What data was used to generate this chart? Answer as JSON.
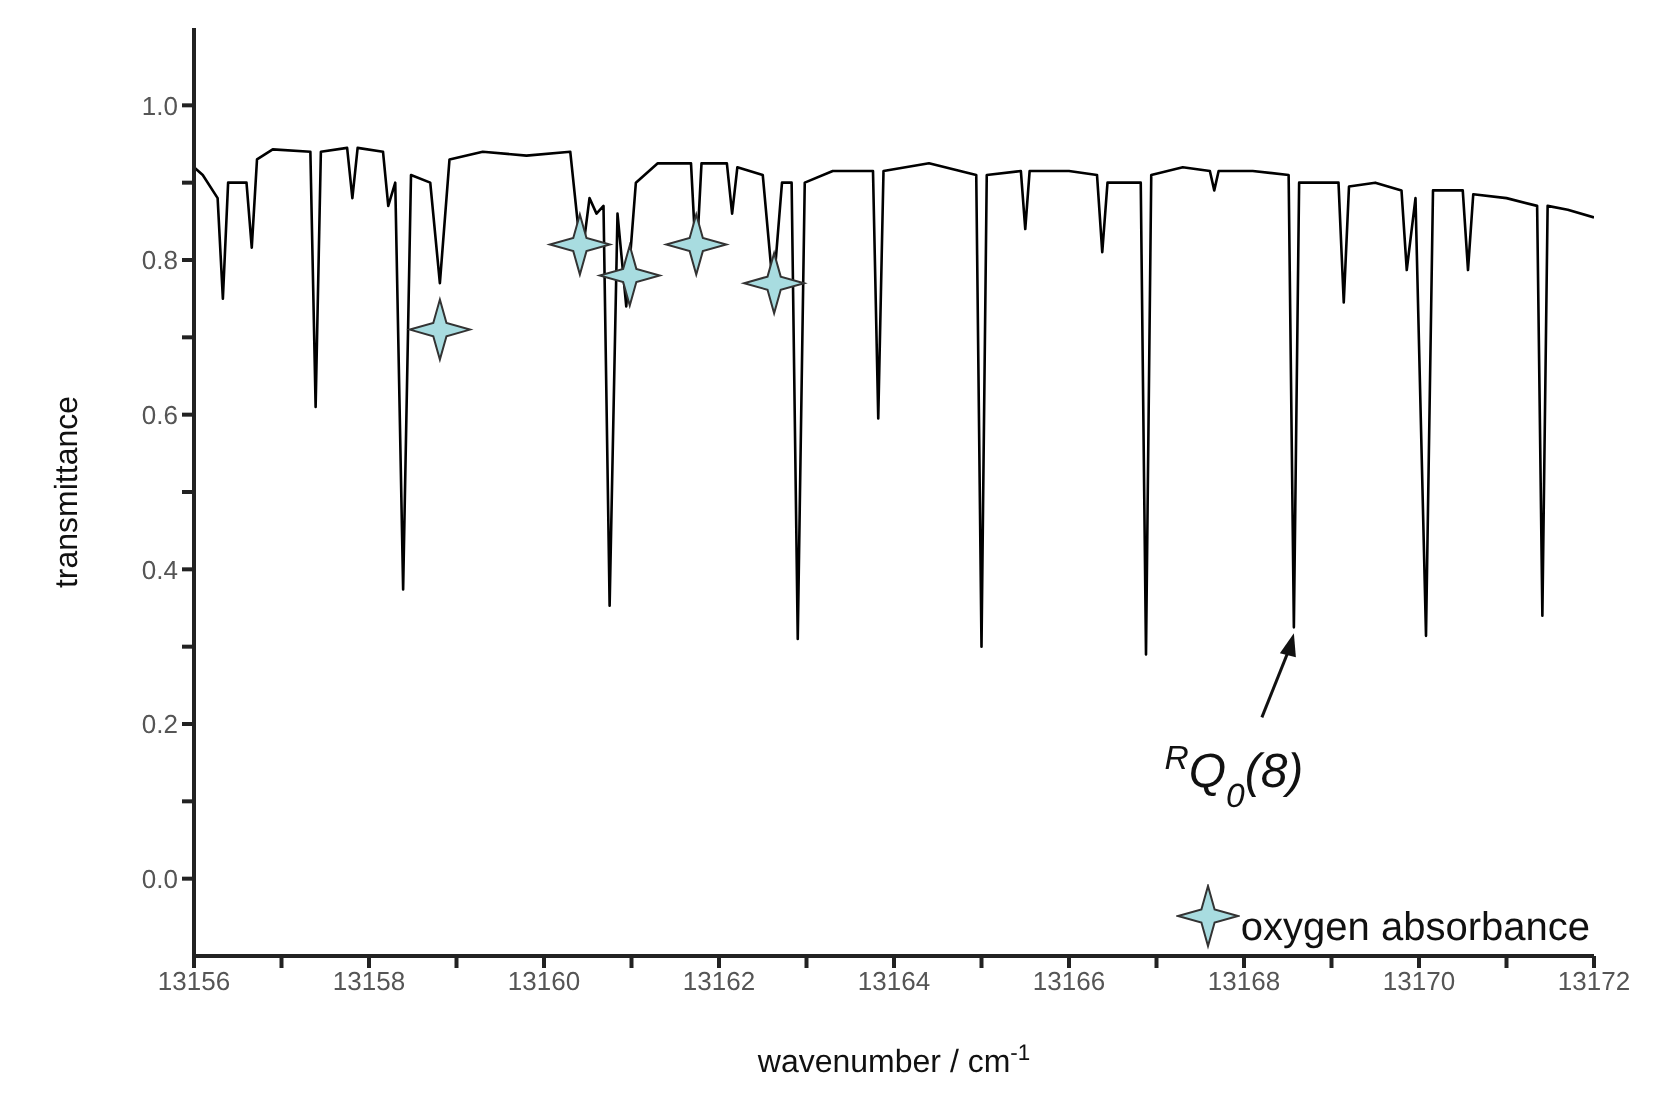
{
  "chart_data": {
    "type": "line",
    "xlabel": "wavenumber / cm$^{-1}$",
    "ylabel": "transmittance",
    "xlim": [
      13156,
      13172
    ],
    "ylim": [
      -0.1,
      1.1
    ],
    "xticks": [
      13156,
      {
        "value": 13157,
        "label": null
      },
      13158,
      {
        "value": 13159,
        "label": null
      },
      13160,
      {
        "value": 13161,
        "label": null
      },
      13162,
      {
        "value": 13163,
        "label": null
      },
      13164,
      {
        "value": 13165,
        "label": null
      },
      13166,
      {
        "value": 13167,
        "label": null
      },
      13168,
      {
        "value": 13169,
        "label": null
      },
      13170,
      {
        "value": 13171,
        "label": null
      },
      13172
    ],
    "yticks": [
      {
        "value": 0,
        "label": "0.0"
      },
      {
        "value": 0.1,
        "label": null
      },
      0.2,
      {
        "value": 0.3,
        "label": null
      },
      0.4,
      {
        "value": 0.5,
        "label": null
      },
      0.6,
      {
        "value": 0.7,
        "label": null
      },
      0.8,
      {
        "value": 0.9,
        "label": null
      },
      {
        "value": 1,
        "label": "1.0"
      }
    ],
    "grid": false,
    "legend": "bottom right",
    "series": [
      {
        "color": "#000000",
        "marker": "none",
        "line_style": "solid",
        "x": [
          13156.0,
          13156.1,
          13156.27,
          13156.33,
          13156.39,
          13156.6,
          13156.66,
          13156.72,
          13156.9,
          13157.33,
          13157.39,
          13157.45,
          13157.75,
          13157.81,
          13157.87,
          13158.16,
          13158.22,
          13158.3,
          13158.39,
          13158.48,
          13158.7,
          13158.81,
          13158.92,
          13159.3,
          13159.8,
          13160.3,
          13160.43,
          13160.52,
          13160.6,
          13160.68,
          13160.75,
          13160.84,
          13160.94,
          13161.05,
          13161.3,
          13161.68,
          13161.74,
          13161.8,
          13162.09,
          13162.15,
          13162.21,
          13162.5,
          13162.62,
          13162.72,
          13162.83,
          13162.9,
          13162.98,
          13163.3,
          13163.76,
          13163.82,
          13163.88,
          13164.4,
          13164.94,
          13165.0,
          13165.06,
          13165.45,
          13165.5,
          13165.55,
          13166.0,
          13166.32,
          13166.38,
          13166.44,
          13166.82,
          13166.88,
          13166.94,
          13167.3,
          13167.61,
          13167.66,
          13167.71,
          13168.1,
          13168.51,
          13168.57,
          13168.63,
          13169.08,
          13169.14,
          13169.2,
          13169.5,
          13169.8,
          13169.86,
          13169.96,
          13170.08,
          13170.16,
          13170.5,
          13170.56,
          13170.62,
          13171.0,
          13171.35,
          13171.41,
          13171.47,
          13171.7,
          13172.0
        ],
        "values": [
          0.92,
          0.91,
          0.88,
          0.75,
          0.9,
          0.9,
          0.816,
          0.93,
          0.943,
          0.94,
          0.61,
          0.94,
          0.945,
          0.88,
          0.945,
          0.94,
          0.87,
          0.9,
          0.374,
          0.91,
          0.9,
          0.77,
          0.93,
          0.94,
          0.935,
          0.94,
          0.8,
          0.88,
          0.86,
          0.87,
          0.353,
          0.86,
          0.74,
          0.9,
          0.925,
          0.925,
          0.795,
          0.925,
          0.925,
          0.86,
          0.92,
          0.91,
          0.76,
          0.9,
          0.9,
          0.31,
          0.9,
          0.915,
          0.915,
          0.595,
          0.915,
          0.925,
          0.91,
          0.3,
          0.91,
          0.915,
          0.84,
          0.915,
          0.915,
          0.91,
          0.81,
          0.9,
          0.9,
          0.29,
          0.91,
          0.92,
          0.915,
          0.89,
          0.915,
          0.915,
          0.91,
          0.325,
          0.9,
          0.9,
          0.745,
          0.895,
          0.9,
          0.89,
          0.787,
          0.88,
          0.314,
          0.89,
          0.89,
          0.787,
          0.885,
          0.88,
          0.87,
          0.34,
          0.87,
          0.865,
          0.855
        ]
      },
      {
        "type": "scatter",
        "name": "oxygen absorbance",
        "color": "#a8dce0",
        "marker": "star",
        "x": [
          13158.81,
          13160.41,
          13160.98,
          13161.74,
          13162.63
        ],
        "values": [
          0.71,
          0.82,
          0.78,
          0.82,
          0.77
        ]
      }
    ],
    "annotations": [
      {
        "text": "$^{R}$Q$_{0}$(8)",
        "x": 13168.57,
        "y": 0.325
      }
    ]
  }
}
